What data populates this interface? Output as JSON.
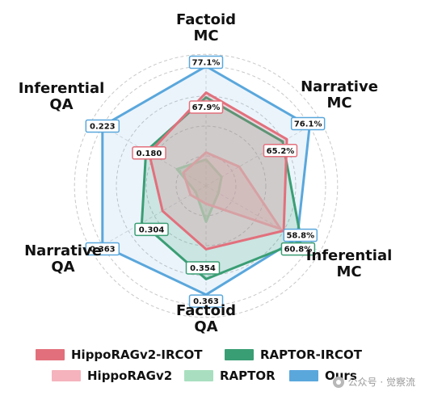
{
  "chart_data": {
    "type": "radar",
    "axes": [
      "Factoid\nMC",
      "Narrative\nMC",
      "Inferential\nMC",
      "Factoid\nQA",
      "Narrative\nQA",
      "Inferential\nQA"
    ],
    "series": [
      {
        "name": "HippoRAGv2-IRCOT",
        "color": "#e2707c",
        "fill": "#e2707c",
        "fill_opacity": 0.22,
        "values": [
          0.78,
          0.78,
          0.75,
          0.53,
          0.42,
          0.55
        ],
        "labels": [
          "67.9%",
          "65.2%",
          "",
          "",
          "",
          "0.180"
        ]
      },
      {
        "name": "RAPTOR-IRCOT",
        "color": "#3a9e74",
        "fill": "#3a9e74",
        "fill_opacity": 0.18,
        "values": [
          0.74,
          0.74,
          0.92,
          0.78,
          0.62,
          0.58
        ],
        "labels": [
          "",
          "",
          "60.8%",
          "0.354",
          "0.304",
          ""
        ]
      },
      {
        "name": "HippoRAGv2",
        "color": "#f5b3bd",
        "fill": "#f5b3bd",
        "fill_opacity": 0.35,
        "values": [
          0.28,
          0.32,
          0.72,
          0.15,
          0.15,
          0.22
        ],
        "labels": [
          "",
          "",
          "",
          "",
          "",
          ""
        ]
      },
      {
        "name": "RAPTOR",
        "color": "#a9dfc0",
        "fill": "#a9dfc0",
        "fill_opacity": 0.4,
        "values": [
          0.22,
          0.15,
          0.12,
          0.3,
          0.1,
          0.28
        ],
        "labels": [
          "",
          "",
          "",
          "",
          "",
          ""
        ]
      },
      {
        "name": "Ours",
        "color": "#5aa7dc",
        "fill": "#5aa7dc",
        "fill_opacity": 0.12,
        "values": [
          1.0,
          1.0,
          0.88,
          0.91,
          1.0,
          1.0
        ],
        "labels": [
          "77.1%",
          "76.1%",
          "58.8%",
          "0.363",
          "0.363",
          "0.223"
        ]
      }
    ],
    "rlim": [
      0,
      1
    ],
    "grid": true,
    "legend_position": "bottom"
  },
  "legend_layout": [
    [
      "HippoRAGv2-IRCOT",
      "RAPTOR-IRCOT"
    ],
    [
      "HippoRAGv2",
      "RAPTOR",
      "Ours"
    ]
  ],
  "watermark": "公众号 · 觉察流"
}
